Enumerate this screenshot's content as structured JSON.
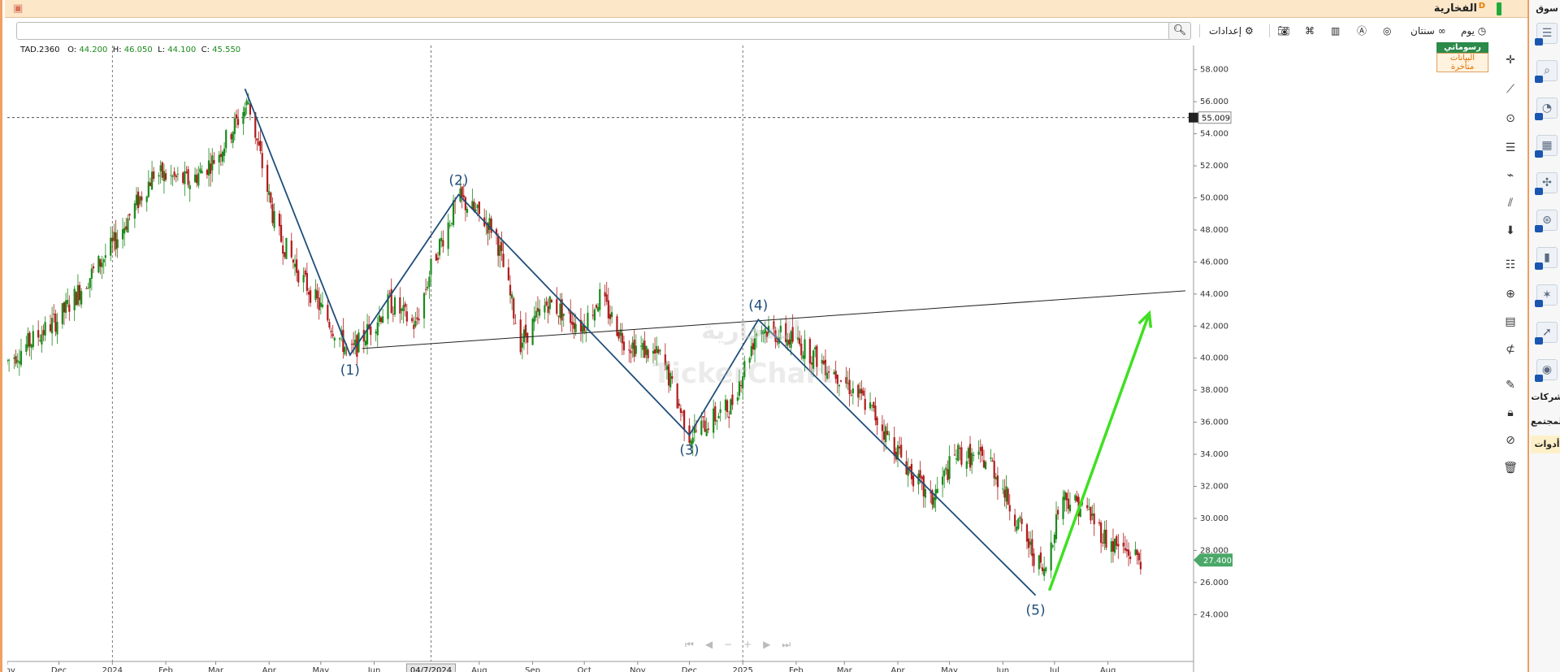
{
  "window": {
    "title": "الفخارية",
    "badge": "D"
  },
  "toolbar": {
    "interval_label": "يوم",
    "linked_label": "سنتان",
    "settings_label": "إعدادات",
    "search_placeholder": ""
  },
  "ohlc": {
    "symbol": "TAD.2360",
    "open_label": "O:",
    "open": "44.200",
    "high_label": "H:",
    "high": "46.050",
    "low_label": "L:",
    "low": "44.100",
    "close_label": "C:",
    "close": "45.550"
  },
  "badges": {
    "brand": "رسوماتي",
    "late_data": "البيانات متأخرة"
  },
  "watermark": {
    "name": "الفخارية",
    "brand": "TickerChart"
  },
  "side_panel": {
    "market_label": "سوق",
    "companies_label": "شركات",
    "community_label": "المجتمع",
    "tools_label": "أدوات"
  },
  "colors": {
    "up": "#1a8a1a",
    "down": "#b01c1c",
    "wave": "#1f4e7a",
    "arrow": "#3fe021",
    "accent": "#f0a060"
  },
  "chart_data": {
    "type": "candlestick",
    "symbol": "TAD.2360",
    "y_axis": {
      "min": 23,
      "max": 59,
      "ticks": [
        "58.000",
        "56.000",
        "54.000",
        "52.000",
        "50.000",
        "48.000",
        "46.000",
        "44.000",
        "42.000",
        "40.000",
        "38.000",
        "36.000",
        "34.000",
        "32.000",
        "30.000",
        "28.000",
        "26.000",
        "24.000"
      ]
    },
    "x_axis": {
      "range": [
        "2023-11-01",
        "2025-09-15"
      ],
      "ticks": [
        {
          "label": "Nov",
          "date": "2023-11-01"
        },
        {
          "label": "Dec",
          "date": "2023-12-01"
        },
        {
          "label": "2024",
          "date": "2024-01-01"
        },
        {
          "label": "Feb",
          "date": "2024-02-01"
        },
        {
          "label": "Mar",
          "date": "2024-03-01"
        },
        {
          "label": "Apr",
          "date": "2024-04-01"
        },
        {
          "label": "May",
          "date": "2024-05-01"
        },
        {
          "label": "Jun",
          "date": "2024-06-01"
        },
        {
          "label": "Aug",
          "date": "2024-08-01"
        },
        {
          "label": "Sep",
          "date": "2024-09-01"
        },
        {
          "label": "Oct",
          "date": "2024-10-01"
        },
        {
          "label": "Nov",
          "date": "2024-11-01"
        },
        {
          "label": "Dec",
          "date": "2024-12-01"
        },
        {
          "label": "2025",
          "date": "2025-01-01"
        },
        {
          "label": "Feb",
          "date": "2025-02-01"
        },
        {
          "label": "Mar",
          "date": "2025-03-01"
        },
        {
          "label": "Apr",
          "date": "2025-04-01"
        },
        {
          "label": "May",
          "date": "2025-05-01"
        },
        {
          "label": "Jun",
          "date": "2025-06-01"
        },
        {
          "label": "Jul",
          "date": "2025-07-01"
        },
        {
          "label": "Aug",
          "date": "2025-08-01"
        }
      ],
      "highlight_label": "04/7/2024",
      "highlight_date": "2024-07-04"
    },
    "crosshair_price": "55.009",
    "last_price": "27.400",
    "vertical_guides": [
      "2024-01-01",
      "2024-07-04",
      "2025-01-01"
    ],
    "trend": [
      [
        "2023-11-01",
        39.8
      ],
      [
        "2023-12-01",
        42.5
      ],
      [
        "2024-01-01",
        47.0
      ],
      [
        "2024-01-25",
        51.5
      ],
      [
        "2024-02-15",
        51.0
      ],
      [
        "2024-03-01",
        52.5
      ],
      [
        "2024-03-20",
        56.0
      ],
      [
        "2024-04-05",
        48.0
      ],
      [
        "2024-04-20",
        45.0
      ],
      [
        "2024-05-18",
        40.2
      ],
      [
        "2024-06-10",
        43.5
      ],
      [
        "2024-06-25",
        42.0
      ],
      [
        "2024-07-05",
        46.0
      ],
      [
        "2024-07-20",
        50.0
      ],
      [
        "2024-08-10",
        48.0
      ],
      [
        "2024-08-25",
        41.0
      ],
      [
        "2024-09-10",
        43.5
      ],
      [
        "2024-09-30",
        42.0
      ],
      [
        "2024-10-10",
        43.8
      ],
      [
        "2024-10-25",
        41.0
      ],
      [
        "2024-11-15",
        40.0
      ],
      [
        "2024-12-01",
        35.2
      ],
      [
        "2024-12-25",
        37.0
      ],
      [
        "2025-01-10",
        42.0
      ],
      [
        "2025-02-01",
        41.0
      ],
      [
        "2025-02-25",
        39.0
      ],
      [
        "2025-03-15",
        37.0
      ],
      [
        "2025-04-05",
        33.5
      ],
      [
        "2025-04-20",
        31.0
      ],
      [
        "2025-05-05",
        34.0
      ],
      [
        "2025-05-25",
        33.5
      ],
      [
        "2025-06-15",
        28.5
      ],
      [
        "2025-06-25",
        26.5
      ],
      [
        "2025-07-05",
        31.5
      ],
      [
        "2025-07-20",
        30.5
      ],
      [
        "2025-08-01",
        28.5
      ],
      [
        "2025-08-20",
        27.5
      ]
    ],
    "wave_labels": [
      {
        "label": "(1)",
        "date": "2024-05-18",
        "value": 40.2,
        "position": "below"
      },
      {
        "label": "(2)",
        "date": "2024-07-20",
        "value": 50.2,
        "position": "above"
      },
      {
        "label": "(3)",
        "date": "2024-12-01",
        "value": 35.2,
        "position": "below"
      },
      {
        "label": "(4)",
        "date": "2025-01-10",
        "value": 42.4,
        "position": "above"
      },
      {
        "label": "(5)",
        "date": "2025-06-20",
        "value": 25.2,
        "position": "below"
      }
    ],
    "wave_line": [
      [
        "2024-03-18",
        56.8
      ],
      [
        "2024-05-18",
        40.2
      ],
      [
        "2024-07-20",
        50.2
      ],
      [
        "2024-12-01",
        35.2
      ],
      [
        "2025-01-10",
        42.4
      ],
      [
        "2025-06-20",
        25.2
      ]
    ],
    "neckline": [
      [
        "2024-05-25",
        40.6
      ],
      [
        "2025-09-15",
        44.2
      ]
    ],
    "projection_arrow": [
      [
        "2025-06-28",
        25.5
      ],
      [
        "2025-08-25",
        42.8
      ]
    ]
  }
}
